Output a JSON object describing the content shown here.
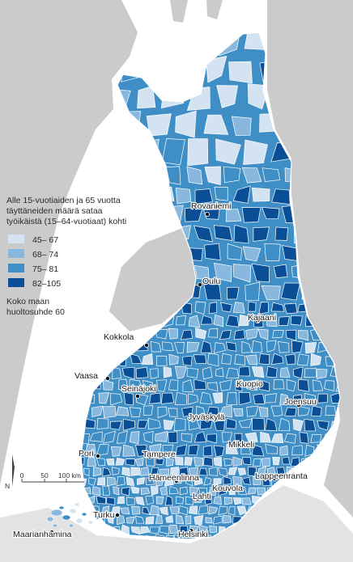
{
  "legend": {
    "title_lines": [
      "Alle 15-vuotiaiden ja 65 vuotta",
      "täyttäneiden määrä sataa",
      "työikäistä (15–64-vuotiaat) kohti"
    ],
    "classes": [
      {
        "label": "45– 67",
        "color": "#d4e3f1"
      },
      {
        "label": "68– 74",
        "color": "#88b8dd"
      },
      {
        "label": "75– 81",
        "color": "#3f8fc6"
      },
      {
        "label": "82–105",
        "color": "#0a4f96"
      }
    ],
    "note_lines": [
      "Koko maan",
      "huoltosuhde 60"
    ]
  },
  "scale": {
    "ticks": [
      "0",
      "50",
      "100 km"
    ],
    "north": "N"
  },
  "cities": [
    {
      "name": "Rovaniemi",
      "class": 1
    },
    {
      "name": "Oulu",
      "class": 0
    },
    {
      "name": "Kajaani",
      "class": 2
    },
    {
      "name": "Kokkola",
      "class": 1
    },
    {
      "name": "Vaasa",
      "class": 0
    },
    {
      "name": "Seinäjoki",
      "class": 1
    },
    {
      "name": "Kuopio",
      "class": 1
    },
    {
      "name": "Joensuu",
      "class": 2
    },
    {
      "name": "Jyväskylä",
      "class": 0
    },
    {
      "name": "Pori",
      "class": 2
    },
    {
      "name": "Tampere",
      "class": 0
    },
    {
      "name": "Mikkeli",
      "class": 2
    },
    {
      "name": "Hämeenlinna",
      "class": 2
    },
    {
      "name": "Lappeenranta",
      "class": 2
    },
    {
      "name": "Kouvola",
      "class": 2
    },
    {
      "name": "Lahti",
      "class": 1
    },
    {
      "name": "Turku",
      "class": 0
    },
    {
      "name": "Helsinki",
      "class": 0
    },
    {
      "name": "Maarianhamina",
      "class": 1
    }
  ],
  "colors": {
    "background_land": "#cbcbcb",
    "sea": "#ffffff",
    "border": "#ffffff"
  }
}
